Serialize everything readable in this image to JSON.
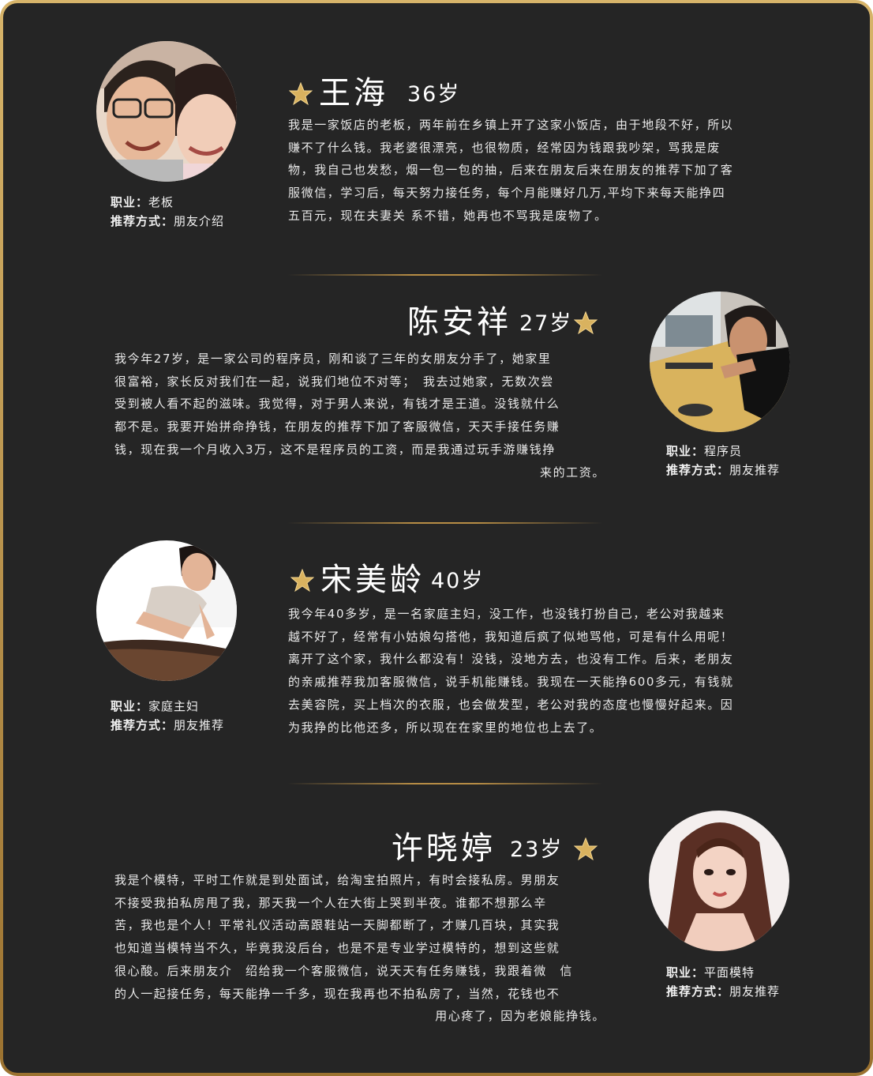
{
  "colors": {
    "background": "#252525",
    "border_gold": "#c9a45c",
    "star_gold": "#d9b25f",
    "text": "#e9e9e9"
  },
  "testimonials": [
    {
      "name": "王海",
      "age": "36岁",
      "occupation_label": "职业：",
      "occupation": "老板",
      "referral_label": "推荐方式：",
      "referral": "朋友介绍",
      "lines": [
        "我是一家饭店的老板，两年前在乡镇上开了这家小饭店，由于地段不好，所以",
        "赚不了什么钱。我老婆很漂亮，也很物质，经常因为钱跟我吵架，骂我是废",
        "物，我自己也发愁，烟一包一包的抽，后来在朋友后来在朋友的推荐下加了客",
        "服微信，学习后，每天努力接任务，每个月能赚好几万,平均下来每天能挣四",
        "五百元，现在夫妻关 系不错，她再也不骂我是废物了。"
      ]
    },
    {
      "name": "陈安祥",
      "age": "27岁",
      "occupation_label": "职业：",
      "occupation": "程序员",
      "referral_label": "推荐方式：",
      "referral": "朋友推荐",
      "lines": [
        "我今年27岁，是一家公司的程序员，刚和谈了三年的女朋友分手了，她家里",
        "很富裕，家长反对我们在一起，说我们地位不对等；　我去过她家，无数次尝",
        "受到被人看不起的滋味。我觉得，对于男人来说，有钱才是王道。没钱就什么",
        "都不是。我要开始拼命挣钱，在朋友的推荐下加了客服微信，天天手接任务赚",
        "钱，现在我一个月收入3万，这不是程序员的工资，而是我通过玩手游赚钱挣",
        "来的工资。"
      ]
    },
    {
      "name": "宋美龄",
      "age": "40岁",
      "occupation_label": "职业：",
      "occupation": "家庭主妇",
      "referral_label": "推荐方式：",
      "referral": "朋友推荐",
      "lines": [
        "我今年40多岁，是一名家庭主妇，没工作，也没钱打扮自己，老公对我越来",
        "越不好了，经常有小姑娘勾搭他，我知道后疯了似地骂他，可是有什么用呢！",
        "离开了这个家，我什么都没有！没钱，没地方去，也没有工作。后来，老朋友",
        "的亲戚推荐我加客服微信，说手机能赚钱。我现在一天能挣600多元，有钱就",
        "去美容院，买上档次的衣服，也会做发型，老公对我的态度也慢慢好起来。因",
        "为我挣的比他还多，所以现在在家里的地位也上去了。"
      ]
    },
    {
      "name": "许晓婷",
      "age": "23岁",
      "occupation_label": "职业：",
      "occupation": "平面模特",
      "referral_label": "推荐方式：",
      "referral": "朋友推荐",
      "lines": [
        "我是个模特，平时工作就是到处面试，给淘宝拍照片，有时会接私房。男朋友",
        "不接受我拍私房甩了我，那天我一个人在大街上哭到半夜。谁都不想那么辛",
        "苦，我也是个人！平常礼仪活动高跟鞋站一天脚都断了，才赚几百块，其实我",
        "也知道当模特当不久，毕竟我没后台，也是不是专业学过模特的，想到这些就",
        "很心酸。后来朋友介　绍给我一个客服微信，说天天有任务赚钱，我跟着微　信",
        "的人一起接任务，每天能挣一千多，现在我再也不拍私房了，当然，花钱也不",
        "用心疼了，因为老娘能挣钱。"
      ]
    }
  ]
}
